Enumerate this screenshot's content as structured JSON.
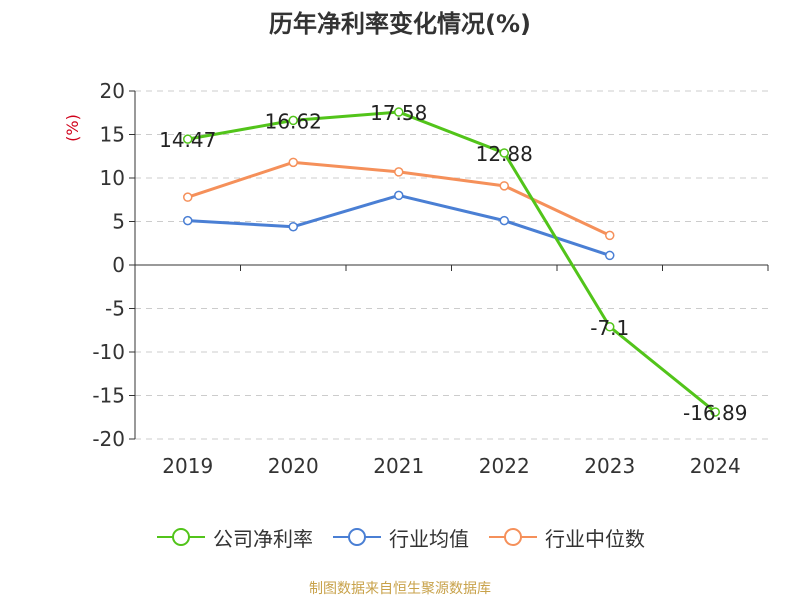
{
  "chart_data": {
    "type": "line",
    "title": "历年净利率变化情况(%)",
    "ylabel": "(%)",
    "categories": [
      "2019",
      "2020",
      "2021",
      "2022",
      "2023",
      "2024"
    ],
    "ylim": [
      -20,
      20
    ],
    "yticks": [
      "20",
      "15",
      "10",
      "5",
      "0",
      "-5",
      "-10",
      "-15",
      "-20"
    ],
    "grid": true,
    "legend_position": "bottom",
    "series": [
      {
        "name": "公司净利率",
        "color": "#52c41a",
        "values": [
          14.47,
          16.62,
          17.58,
          12.88,
          -7.1,
          -16.89
        ],
        "labels": [
          "14.47",
          "16.62",
          "17.58",
          "12.88",
          "-7.1",
          "-16.89"
        ]
      },
      {
        "name": "行业均值",
        "color": "#4a7fd4",
        "values": [
          5.1,
          4.4,
          8.0,
          5.1,
          1.1,
          null
        ]
      },
      {
        "name": "行业中位数",
        "color": "#f5905a",
        "values": [
          7.8,
          11.8,
          10.7,
          9.1,
          3.4,
          null
        ]
      }
    ],
    "source": "制图数据来自恒生聚源数据库"
  }
}
